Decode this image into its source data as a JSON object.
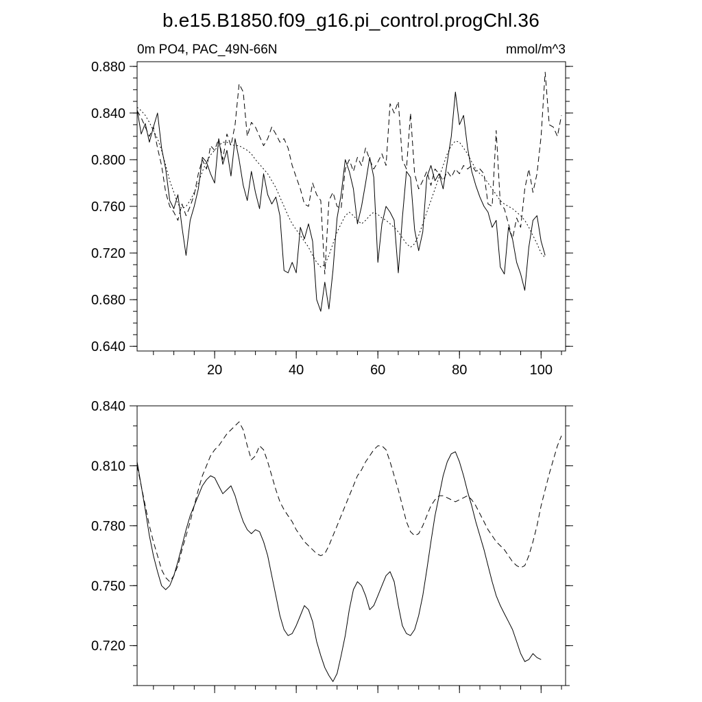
{
  "title": "b.e15.B1850.f09_g16.pi_control.progChl.36",
  "colors": {
    "line": "#000000",
    "background": "#ffffff"
  },
  "chart_data": [
    {
      "type": "line",
      "panel": "top",
      "title_left": "0m PO4, PAC_49N-66N",
      "title_right": "mmol/m^3",
      "xlim": [
        1,
        106
      ],
      "ylim": [
        0.636,
        0.884
      ],
      "x_tick_values": [
        20,
        40,
        60,
        80,
        100
      ],
      "x_tick_labels": [
        "20",
        "40",
        "60",
        "80",
        "100"
      ],
      "x_minor_step": 5,
      "show_x_labels": true,
      "y_tick_values": [
        0.64,
        0.68,
        0.72,
        0.76,
        0.8,
        0.84,
        0.88
      ],
      "y_tick_labels": [
        "0.640",
        "0.680",
        "0.720",
        "0.760",
        "0.800",
        "0.840",
        "0.880"
      ],
      "y_minor_step": 0.01,
      "grid": false,
      "legend": "none",
      "series": [
        {
          "name": "solid",
          "style": "solid",
          "x_start": 1,
          "x_step": 1,
          "values": [
            0.843,
            0.822,
            0.831,
            0.815,
            0.828,
            0.84,
            0.81,
            0.792,
            0.765,
            0.758,
            0.77,
            0.742,
            0.718,
            0.748,
            0.76,
            0.775,
            0.802,
            0.798,
            0.788,
            0.78,
            0.818,
            0.796,
            0.808,
            0.786,
            0.818,
            0.8,
            0.778,
            0.765,
            0.79,
            0.772,
            0.758,
            0.788,
            0.77,
            0.762,
            0.768,
            0.752,
            0.705,
            0.703,
            0.712,
            0.703,
            0.742,
            0.732,
            0.745,
            0.73,
            0.68,
            0.67,
            0.695,
            0.672,
            0.705,
            0.75,
            0.77,
            0.8,
            0.79,
            0.775,
            0.745,
            0.76,
            0.78,
            0.802,
            0.785,
            0.712,
            0.745,
            0.76,
            0.755,
            0.748,
            0.703,
            0.75,
            0.79,
            0.785,
            0.74,
            0.722,
            0.738,
            0.785,
            0.795,
            0.782,
            0.788,
            0.775,
            0.798,
            0.82,
            0.858,
            0.83,
            0.838,
            0.81,
            0.79,
            0.778,
            0.768,
            0.76,
            0.755,
            0.742,
            0.748,
            0.708,
            0.702,
            0.742,
            0.732,
            0.712,
            0.702,
            0.688,
            0.725,
            0.748,
            0.752,
            0.73,
            0.718
          ]
        },
        {
          "name": "dashed",
          "style": "dash",
          "x_start": 1,
          "x_step": 1,
          "values": [
            0.842,
            0.836,
            0.828,
            0.82,
            0.828,
            0.81,
            0.795,
            0.772,
            0.76,
            0.755,
            0.748,
            0.762,
            0.752,
            0.76,
            0.77,
            0.788,
            0.8,
            0.792,
            0.812,
            0.808,
            0.818,
            0.8,
            0.822,
            0.812,
            0.83,
            0.865,
            0.858,
            0.82,
            0.832,
            0.828,
            0.82,
            0.812,
            0.818,
            0.828,
            0.822,
            0.815,
            0.818,
            0.81,
            0.795,
            0.785,
            0.775,
            0.762,
            0.76,
            0.78,
            0.77,
            0.765,
            0.702,
            0.765,
            0.772,
            0.76,
            0.758,
            0.792,
            0.8,
            0.79,
            0.802,
            0.795,
            0.81,
            0.8,
            0.792,
            0.798,
            0.805,
            0.795,
            0.848,
            0.84,
            0.85,
            0.8,
            0.792,
            0.84,
            0.788,
            0.775,
            0.782,
            0.79,
            0.778,
            0.792,
            0.788,
            0.782,
            0.79,
            0.785,
            0.792,
            0.788,
            0.795,
            0.792,
            0.795,
            0.79,
            0.792,
            0.788,
            0.762,
            0.76,
            0.825,
            0.762,
            0.758,
            0.745,
            0.732,
            0.75,
            0.742,
            0.775,
            0.792,
            0.772,
            0.788,
            0.82,
            0.875,
            0.83,
            0.828,
            0.82,
            0.838
          ]
        },
        {
          "name": "dotted",
          "style": "dot",
          "x_start": 1,
          "x_step": 1,
          "values": [
            0.845,
            0.842,
            0.838,
            0.832,
            0.825,
            0.818,
            0.808,
            0.795,
            0.782,
            0.772,
            0.762,
            0.758,
            0.76,
            0.765,
            0.772,
            0.78,
            0.79,
            0.798,
            0.804,
            0.808,
            0.812,
            0.815,
            0.815,
            0.813,
            0.812,
            0.812,
            0.81,
            0.808,
            0.805,
            0.8,
            0.796,
            0.792,
            0.788,
            0.782,
            0.776,
            0.768,
            0.76,
            0.752,
            0.745,
            0.74,
            0.735,
            0.73,
            0.725,
            0.718,
            0.712,
            0.708,
            0.71,
            0.718,
            0.728,
            0.738,
            0.745,
            0.752,
            0.755,
            0.752,
            0.748,
            0.745,
            0.748,
            0.752,
            0.755,
            0.753,
            0.75,
            0.748,
            0.745,
            0.742,
            0.738,
            0.733,
            0.728,
            0.725,
            0.728,
            0.735,
            0.745,
            0.755,
            0.765,
            0.775,
            0.785,
            0.795,
            0.805,
            0.812,
            0.816,
            0.815,
            0.81,
            0.805,
            0.798,
            0.792,
            0.788,
            0.785,
            0.78,
            0.775,
            0.77,
            0.765,
            0.762,
            0.76,
            0.758,
            0.755,
            0.752,
            0.748,
            0.742,
            0.735,
            0.728,
            0.72,
            0.716
          ]
        }
      ]
    },
    {
      "type": "line",
      "panel": "bottom",
      "title_left": "",
      "title_right": "",
      "xlim": [
        1,
        106
      ],
      "ylim": [
        0.7,
        0.84
      ],
      "x_tick_values": [
        20,
        40,
        60,
        80,
        100
      ],
      "x_tick_labels": [
        "20",
        "40",
        "60",
        "80",
        "100"
      ],
      "x_minor_step": 5,
      "show_x_labels": false,
      "y_tick_values": [
        0.72,
        0.75,
        0.78,
        0.81,
        0.84
      ],
      "y_tick_labels": [
        "0.720",
        "0.750",
        "0.780",
        "0.810",
        "0.840"
      ],
      "y_minor_step": 0.01,
      "grid": false,
      "legend": "none",
      "series": [
        {
          "name": "solid",
          "style": "solid",
          "x_start": 1,
          "x_step": 1,
          "values": [
            0.812,
            0.8,
            0.788,
            0.775,
            0.765,
            0.757,
            0.75,
            0.748,
            0.75,
            0.755,
            0.762,
            0.77,
            0.778,
            0.785,
            0.79,
            0.795,
            0.8,
            0.803,
            0.805,
            0.804,
            0.8,
            0.796,
            0.798,
            0.8,
            0.795,
            0.788,
            0.782,
            0.778,
            0.776,
            0.778,
            0.777,
            0.772,
            0.765,
            0.755,
            0.745,
            0.735,
            0.728,
            0.725,
            0.726,
            0.73,
            0.735,
            0.74,
            0.738,
            0.732,
            0.722,
            0.715,
            0.709,
            0.705,
            0.702,
            0.706,
            0.715,
            0.725,
            0.738,
            0.748,
            0.752,
            0.75,
            0.745,
            0.738,
            0.74,
            0.745,
            0.75,
            0.755,
            0.757,
            0.752,
            0.74,
            0.73,
            0.726,
            0.725,
            0.728,
            0.735,
            0.745,
            0.758,
            0.772,
            0.785,
            0.795,
            0.805,
            0.812,
            0.816,
            0.817,
            0.812,
            0.805,
            0.797,
            0.79,
            0.782,
            0.775,
            0.768,
            0.76,
            0.752,
            0.745,
            0.74,
            0.736,
            0.732,
            0.728,
            0.722,
            0.716,
            0.712,
            0.713,
            0.716,
            0.714,
            0.713
          ]
        },
        {
          "name": "dashed",
          "style": "dash",
          "x_start": 1,
          "x_step": 1,
          "values": [
            0.81,
            0.8,
            0.79,
            0.78,
            0.772,
            0.765,
            0.758,
            0.754,
            0.752,
            0.755,
            0.76,
            0.768,
            0.775,
            0.782,
            0.79,
            0.798,
            0.805,
            0.81,
            0.815,
            0.818,
            0.82,
            0.823,
            0.826,
            0.828,
            0.83,
            0.832,
            0.828,
            0.82,
            0.813,
            0.815,
            0.82,
            0.818,
            0.812,
            0.805,
            0.798,
            0.792,
            0.788,
            0.785,
            0.782,
            0.778,
            0.775,
            0.772,
            0.77,
            0.768,
            0.766,
            0.765,
            0.766,
            0.77,
            0.775,
            0.78,
            0.785,
            0.79,
            0.795,
            0.8,
            0.805,
            0.808,
            0.812,
            0.815,
            0.818,
            0.82,
            0.82,
            0.818,
            0.812,
            0.805,
            0.798,
            0.79,
            0.782,
            0.777,
            0.775,
            0.776,
            0.78,
            0.785,
            0.79,
            0.793,
            0.795,
            0.795,
            0.794,
            0.793,
            0.792,
            0.793,
            0.794,
            0.795,
            0.793,
            0.79,
            0.786,
            0.782,
            0.778,
            0.775,
            0.772,
            0.77,
            0.768,
            0.765,
            0.762,
            0.76,
            0.759,
            0.76,
            0.765,
            0.772,
            0.78,
            0.79,
            0.798,
            0.806,
            0.813,
            0.82,
            0.825
          ]
        }
      ]
    }
  ]
}
